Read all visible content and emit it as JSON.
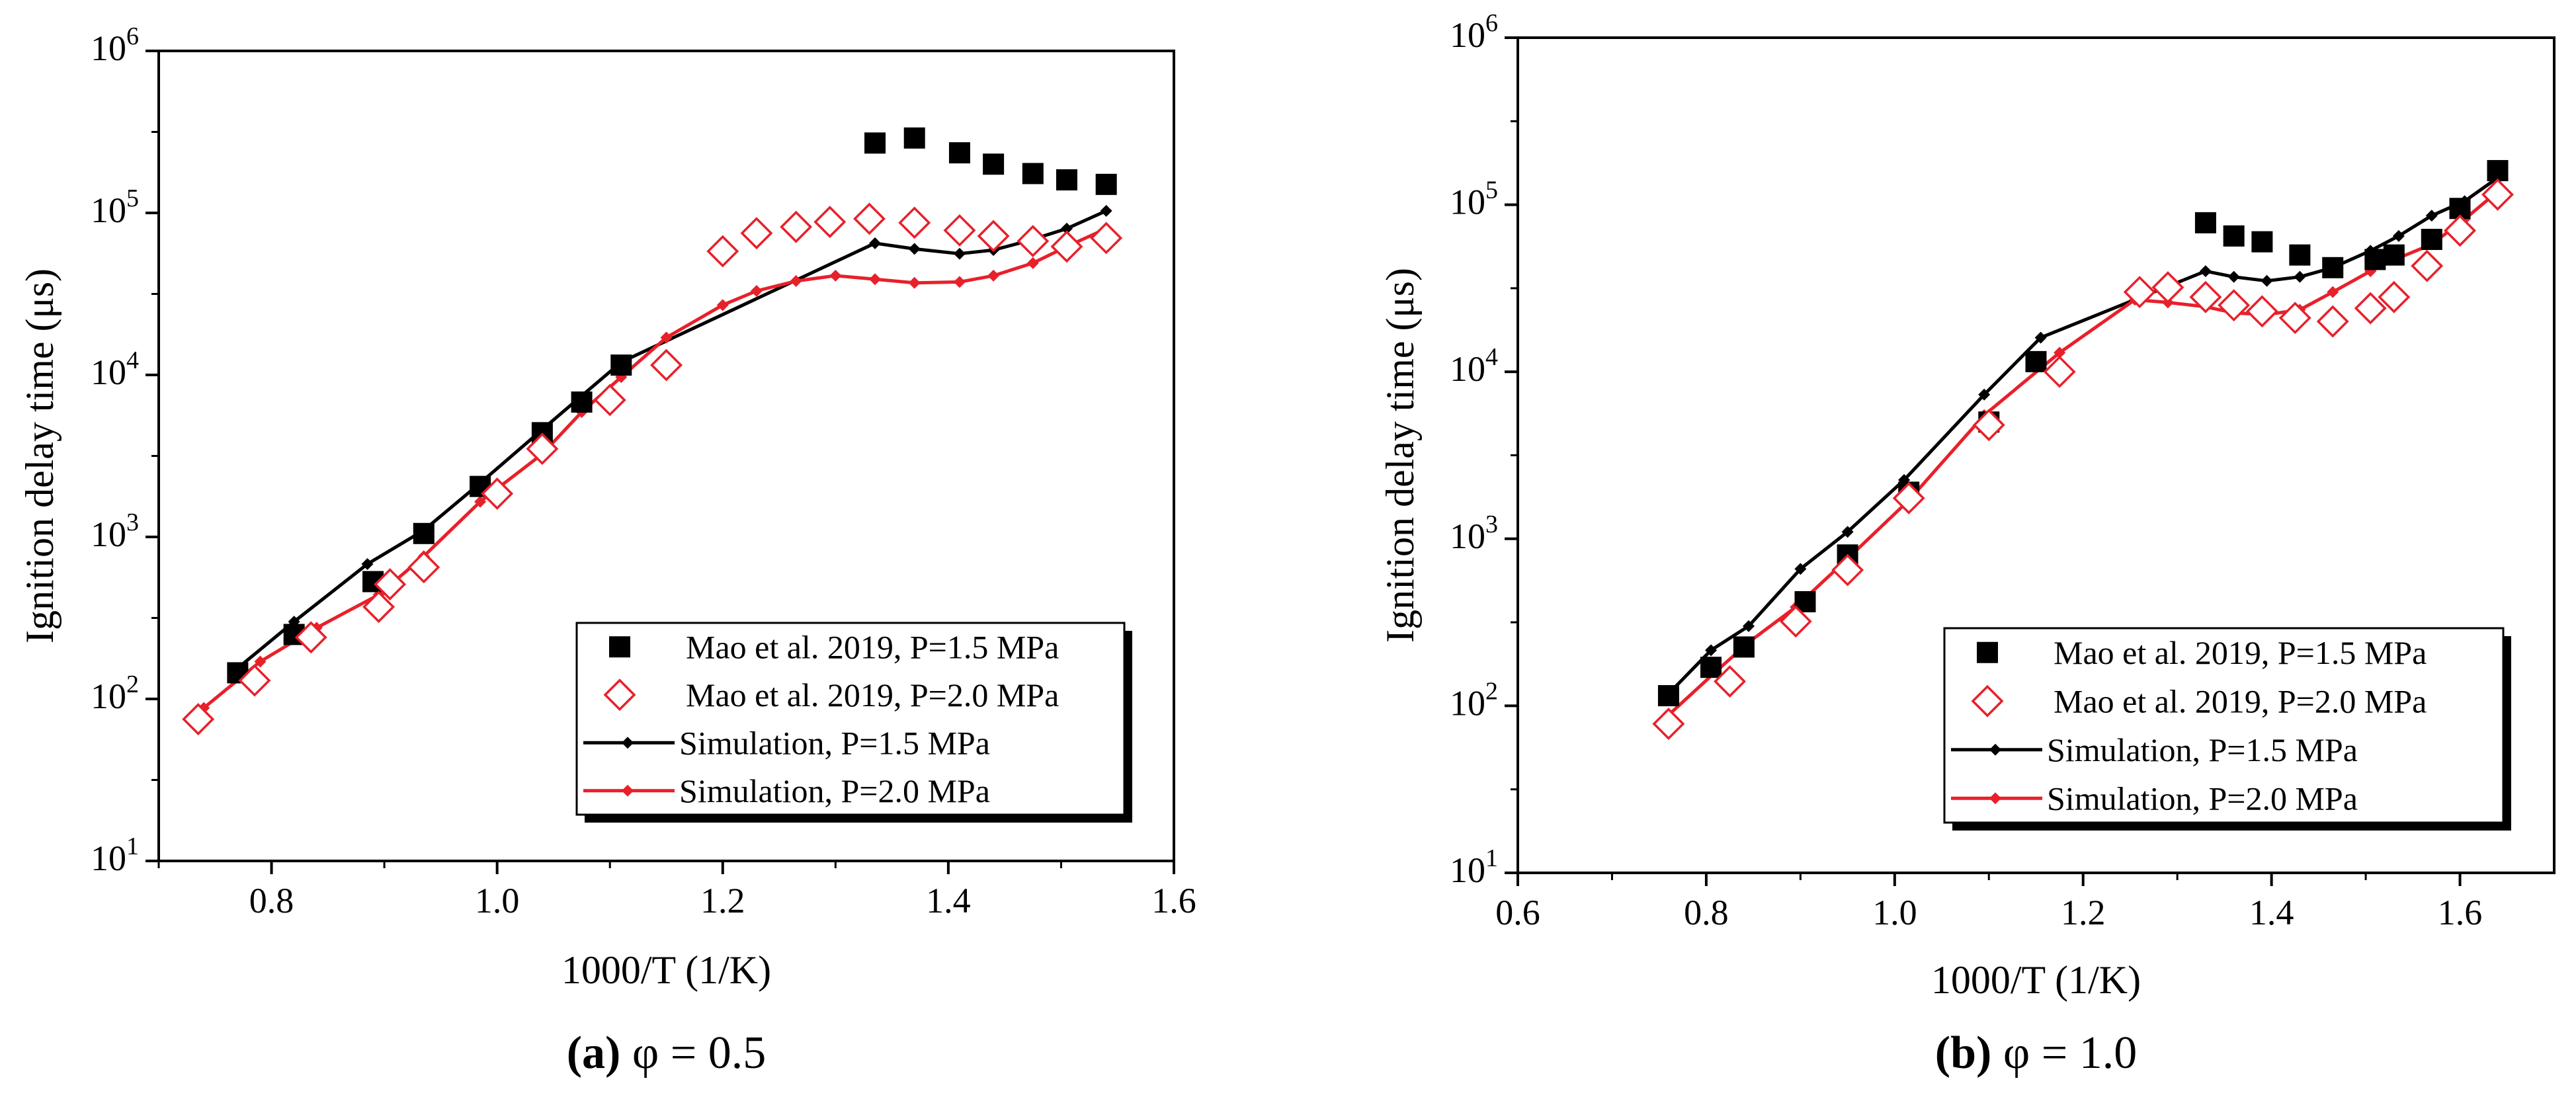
{
  "chart_data": [
    {
      "type": "scatter",
      "panel": "a",
      "caption": {
        "letter": "(a)",
        "text": " φ = 0.5"
      },
      "xlabel": "1000/T (1/K)",
      "ylabel": "Ignition delay time (μs)",
      "xlim": [
        0.7,
        1.6
      ],
      "xticks": [
        0.8,
        1.0,
        1.2,
        1.4,
        1.6
      ],
      "xtick_labels": [
        "0.8",
        "1.0",
        "1.2",
        "1.4",
        "1.6"
      ],
      "ylim": [
        10,
        1000000
      ],
      "yscale": "log",
      "yticks": [
        10,
        100,
        1000,
        10000,
        100000,
        1000000
      ],
      "ytick_labels": [
        {
          "base": "10",
          "exp": "1"
        },
        {
          "base": "10",
          "exp": "2"
        },
        {
          "base": "10",
          "exp": "3"
        },
        {
          "base": "10",
          "exp": "4"
        },
        {
          "base": "10",
          "exp": "5"
        },
        {
          "base": "10",
          "exp": "6"
        }
      ],
      "legend_position": "bottom-right",
      "series": [
        {
          "name": "Mao et al. 2019, P=1.5 MPa",
          "kind": "marker",
          "marker": "filled-square",
          "color": "#000000",
          "x": [
            0.77,
            0.82,
            0.89,
            0.935,
            0.985,
            1.04,
            1.075,
            1.11,
            1.335,
            1.37,
            1.41,
            1.44,
            1.475,
            1.505,
            1.54
          ],
          "y": [
            145,
            250,
            530,
            1050,
            2050,
            4400,
            6800,
            11500,
            270000,
            290000,
            235000,
            200000,
            175000,
            160000,
            150000
          ]
        },
        {
          "name": "Mao et al. 2019, P=2.0 MPa",
          "kind": "marker",
          "marker": "open-diamond",
          "color": "#e8202a",
          "x": [
            0.735,
            0.785,
            0.835,
            0.895,
            0.905,
            0.935,
            1.0,
            1.04,
            1.1,
            1.15,
            1.2,
            1.23,
            1.265,
            1.295,
            1.33,
            1.37,
            1.41,
            1.44,
            1.475,
            1.505,
            1.54
          ],
          "y": [
            75,
            130,
            240,
            370,
            510,
            650,
            1850,
            3500,
            7000,
            11500,
            58000,
            75000,
            82000,
            88000,
            92000,
            87000,
            78000,
            72000,
            67000,
            62000,
            70000
          ]
        },
        {
          "name": "Simulation,  P=1.5 MPa",
          "kind": "line",
          "marker": "small-diamond",
          "color": "#000000",
          "x": [
            0.77,
            0.82,
            0.885,
            0.935,
            0.985,
            1.04,
            1.11,
            1.335,
            1.37,
            1.41,
            1.44,
            1.47,
            1.505,
            1.54
          ],
          "y": [
            155,
            300,
            680,
            1100,
            2150,
            4600,
            12000,
            65000,
            60000,
            56000,
            59000,
            67000,
            80000,
            103000
          ]
        },
        {
          "name": "Simulation,  P=2.0 MPa",
          "kind": "line",
          "marker": "small-diamond",
          "color": "#e8202a",
          "x": [
            0.74,
            0.79,
            0.84,
            0.895,
            0.935,
            0.985,
            1.04,
            1.075,
            1.11,
            1.15,
            1.2,
            1.23,
            1.265,
            1.3,
            1.335,
            1.37,
            1.41,
            1.44,
            1.475,
            1.505,
            1.54
          ],
          "y": [
            88,
            170,
            275,
            440,
            760,
            1650,
            3250,
            5900,
            9700,
            17000,
            27000,
            33000,
            38000,
            41000,
            39000,
            37000,
            37500,
            41000,
            49000,
            62000,
            80000
          ]
        }
      ]
    },
    {
      "type": "scatter",
      "panel": "b",
      "caption": {
        "letter": "(b)",
        "text": " φ = 1.0"
      },
      "xlabel": "1000/T (1/K)",
      "ylabel": "Ignition delay time (μs)",
      "xlim": [
        0.6,
        1.7
      ],
      "xticks": [
        0.6,
        0.8,
        1.0,
        1.2,
        1.4,
        1.6
      ],
      "xtick_labels": [
        "0.6",
        "0.8",
        "1.0",
        "1.2",
        "1.4",
        "1.6"
      ],
      "ylim": [
        10,
        1000000
      ],
      "yscale": "log",
      "yticks": [
        10,
        100,
        1000,
        10000,
        100000,
        1000000
      ],
      "ytick_labels": [
        {
          "base": "10",
          "exp": "1"
        },
        {
          "base": "10",
          "exp": "2"
        },
        {
          "base": "10",
          "exp": "3"
        },
        {
          "base": "10",
          "exp": "4"
        },
        {
          "base": "10",
          "exp": "5"
        },
        {
          "base": "10",
          "exp": "6"
        }
      ],
      "legend_position": "bottom-right",
      "series": [
        {
          "name": "Mao et al. 2019, P=1.5 MPa",
          "kind": "marker",
          "marker": "filled-square",
          "color": "#000000",
          "x": [
            0.76,
            0.805,
            0.84,
            0.905,
            0.95,
            1.015,
            1.1,
            1.15,
            1.33,
            1.36,
            1.39,
            1.43,
            1.465,
            1.51,
            1.53,
            1.57,
            1.6,
            1.64
          ],
          "y": [
            115,
            170,
            225,
            420,
            800,
            1900,
            5000,
            11500,
            78000,
            65000,
            60000,
            50000,
            42000,
            47000,
            50000,
            62000,
            95000,
            160000
          ]
        },
        {
          "name": "Mao et al. 2019, P=2.0 MPa",
          "kind": "marker",
          "marker": "open-diamond",
          "color": "#e8202a",
          "x": [
            0.76,
            0.825,
            0.895,
            0.95,
            1.015,
            1.1,
            1.175,
            1.26,
            1.29,
            1.33,
            1.36,
            1.39,
            1.425,
            1.465,
            1.505,
            1.53,
            1.565,
            1.6,
            1.64
          ],
          "y": [
            78,
            140,
            320,
            650,
            1750,
            4800,
            10000,
            30000,
            32000,
            28000,
            25000,
            23000,
            21000,
            20000,
            24000,
            28000,
            43000,
            70000,
            115000
          ]
        },
        {
          "name": "Simulation, P=1.5 MPa",
          "kind": "line",
          "marker": "small-diamond",
          "color": "#000000",
          "x": [
            0.76,
            0.805,
            0.845,
            0.9,
            0.95,
            1.01,
            1.095,
            1.155,
            1.33,
            1.36,
            1.395,
            1.43,
            1.465,
            1.505,
            1.535,
            1.57,
            1.605,
            1.64
          ],
          "y": [
            118,
            215,
            300,
            660,
            1100,
            2250,
            7300,
            16000,
            40000,
            37000,
            35000,
            37000,
            42000,
            53000,
            65000,
            86000,
            105000,
            145000
          ]
        },
        {
          "name": "Simulation, P=2.0 MPa",
          "kind": "line",
          "marker": "small-diamond",
          "color": "#e8202a",
          "x": [
            0.76,
            0.81,
            0.845,
            0.895,
            0.95,
            1.015,
            1.095,
            1.175,
            1.255,
            1.29,
            1.33,
            1.36,
            1.395,
            1.43,
            1.465,
            1.505,
            1.535,
            1.57,
            1.605,
            1.64
          ],
          "y": [
            88,
            160,
            240,
            390,
            760,
            1700,
            5500,
            13000,
            27000,
            26000,
            24500,
            22500,
            22000,
            23500,
            30000,
            40000,
            48000,
            58000,
            82000,
            120000
          ]
        }
      ]
    }
  ]
}
